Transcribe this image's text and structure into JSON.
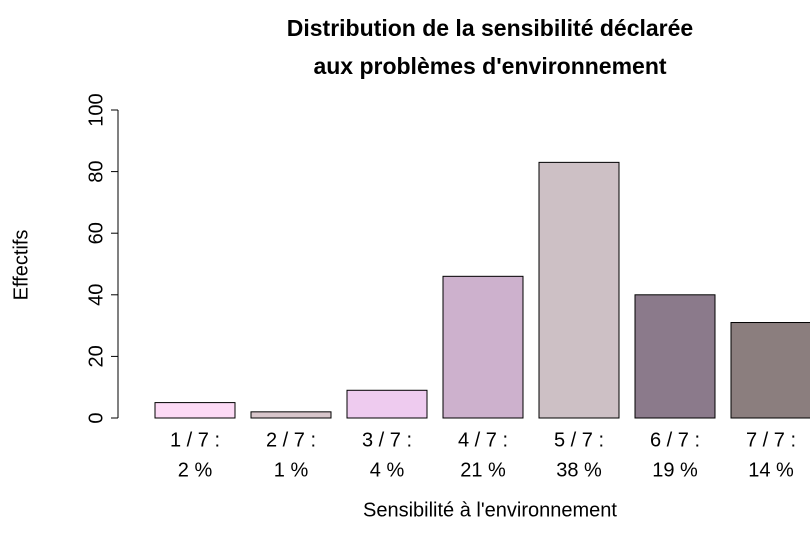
{
  "chart_data": {
    "type": "bar",
    "title": [
      "Distribution de la sensibilité déclarée",
      "aux problèmes d'environnement"
    ],
    "x_label": "Sensibilité à l'environnement",
    "y_label": "Effectifs",
    "categories": [
      [
        "1 / 7 :",
        "2 %"
      ],
      [
        "2 / 7 :",
        "1 %"
      ],
      [
        "3 / 7 :",
        "4 %"
      ],
      [
        "4 / 7 :",
        "21 %"
      ],
      [
        "5 / 7 :",
        "38 %"
      ],
      [
        "6 / 7 :",
        "19 %"
      ],
      [
        "7 / 7 :",
        "14 %"
      ]
    ],
    "values": [
      5,
      2,
      9,
      46,
      83,
      40,
      31
    ],
    "colors": [
      "#fcdaf5",
      "#d8c6cb",
      "#eecbef",
      "#cdb1cd",
      "#cdc0c5",
      "#8b7a8b",
      "#8b7e7e"
    ],
    "ylim": [
      0,
      100
    ],
    "yticks": [
      0,
      20,
      40,
      60,
      80,
      100
    ]
  }
}
